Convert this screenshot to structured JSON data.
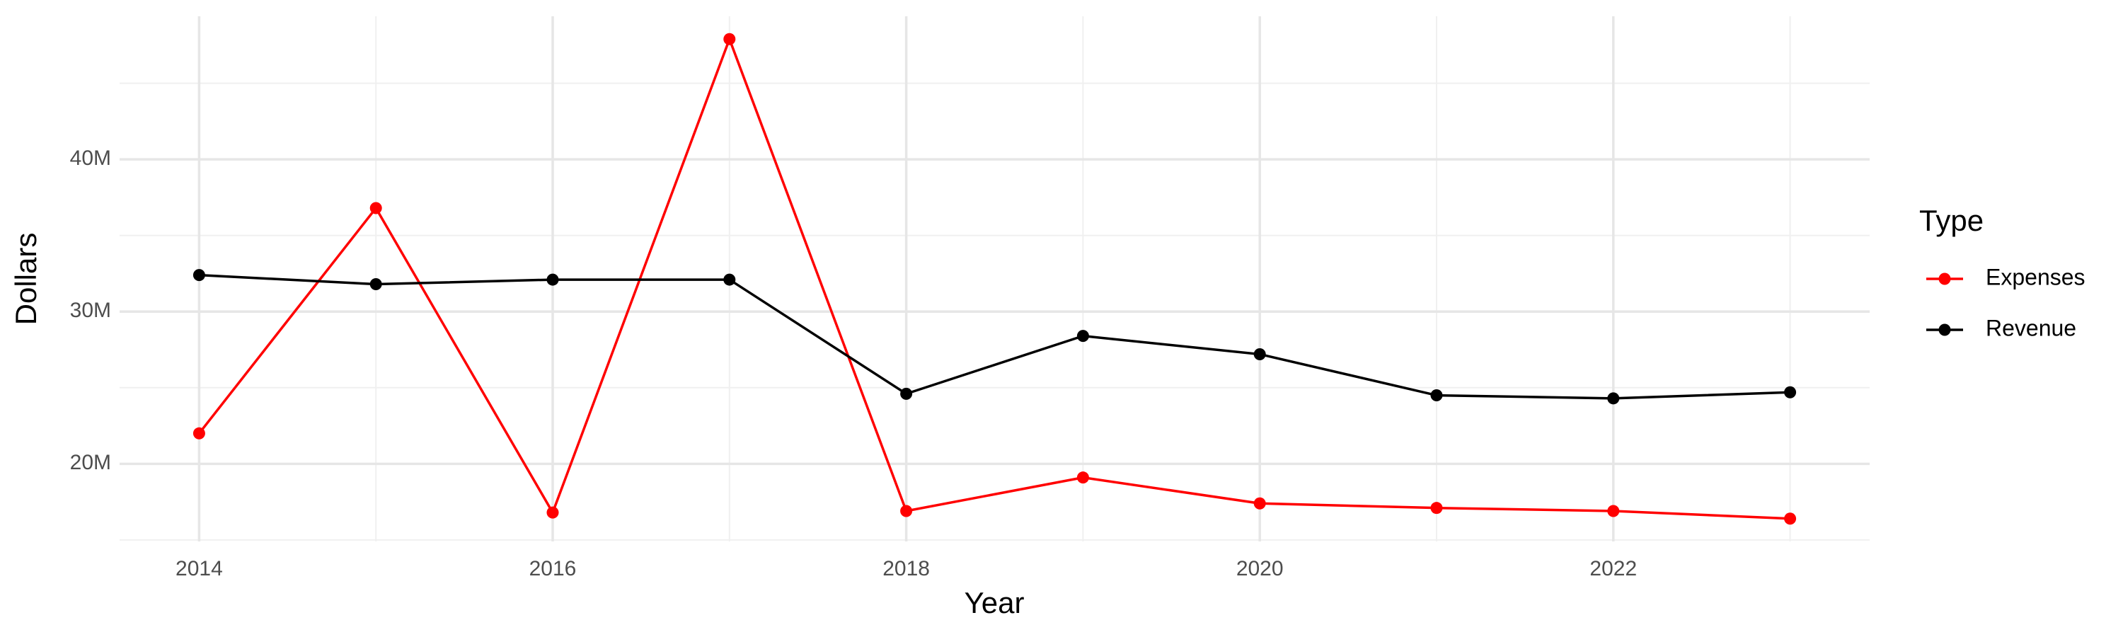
{
  "chart_data": {
    "type": "line",
    "x_label": "Year",
    "y_label": "Dollars",
    "x": [
      2014,
      2015,
      2016,
      2017,
      2018,
      2019,
      2020,
      2021,
      2022,
      2023
    ],
    "series": [
      {
        "name": "Expenses",
        "color": "#ff0000",
        "values": [
          22000000,
          36800000,
          16800000,
          47900000,
          16900000,
          19100000,
          17400000,
          17100000,
          16900000,
          16400000
        ]
      },
      {
        "name": "Revenue",
        "color": "#000000",
        "values": [
          32400000,
          31800000,
          32100000,
          32100000,
          24600000,
          28400000,
          27200000,
          24500000,
          24300000,
          24700000
        ]
      }
    ],
    "xlim": [
      2013.55,
      2023.45
    ],
    "xticks": [
      2014,
      2016,
      2018,
      2020,
      2022
    ],
    "ylim": [
      14900000,
      49400000
    ],
    "yticks": [
      {
        "value": 20000000,
        "label": "20M"
      },
      {
        "value": 30000000,
        "label": "30M"
      },
      {
        "value": 40000000,
        "label": "40M"
      }
    ],
    "legend_title": "Type",
    "legend_position": "right",
    "grid": true
  }
}
